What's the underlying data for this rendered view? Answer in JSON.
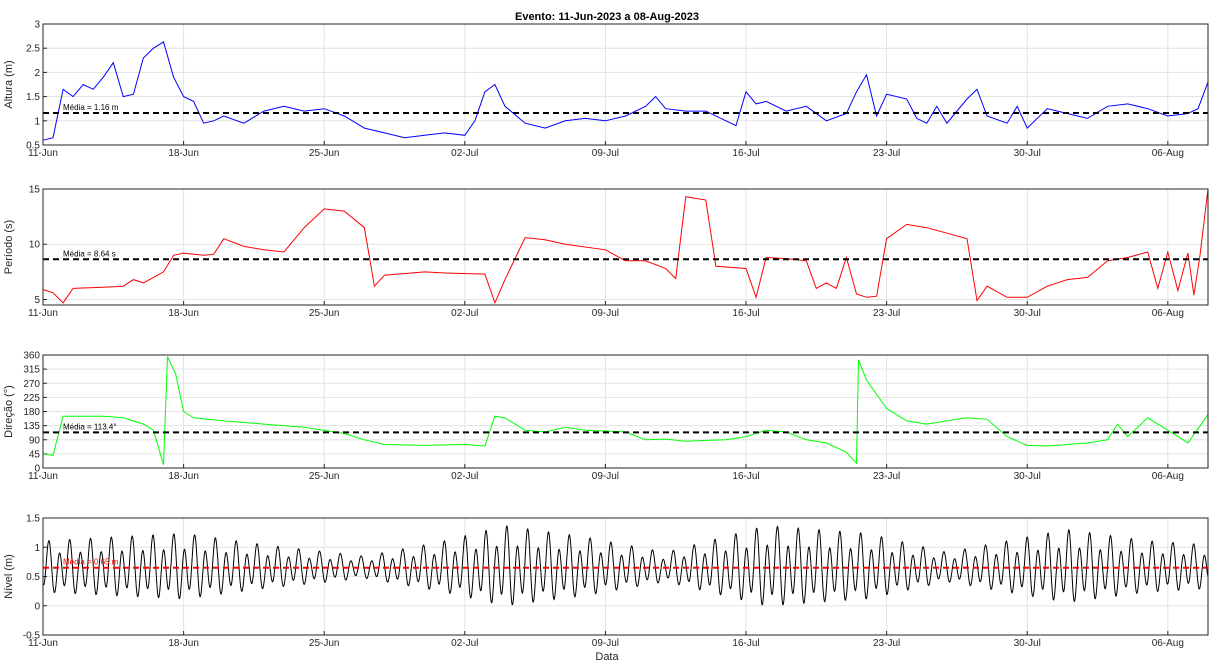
{
  "title": "Evento: 11-Jun-2023 a 08-Aug-2023",
  "xlabel": "Data",
  "chart_data": [
    {
      "type": "line",
      "name": "altura",
      "ylabel": "Altura (m)",
      "xlim": [
        "2023-06-11",
        "2023-08-08"
      ],
      "ylim": [
        0.5,
        3
      ],
      "yticks": [
        0.5,
        1,
        1.5,
        2,
        2.5,
        3
      ],
      "xtick_labels": [
        "11-Jun",
        "18-Jun",
        "25-Jun",
        "02-Jul",
        "09-Jul",
        "16-Jul",
        "23-Jul",
        "30-Jul",
        "06-Aug"
      ],
      "grid": true,
      "color": "#0000ff",
      "mean": {
        "value": 1.16,
        "label": "Média = 1.16 m",
        "color": "#000000"
      },
      "points": [
        [
          "2023-06-11",
          0.6
        ],
        [
          "2023-06-11.5",
          0.65
        ],
        [
          "2023-06-12",
          1.65
        ],
        [
          "2023-06-12.5",
          1.5
        ],
        [
          "2023-06-13",
          1.75
        ],
        [
          "2023-06-13.5",
          1.65
        ],
        [
          "2023-06-14",
          1.9
        ],
        [
          "2023-06-14.5",
          2.2
        ],
        [
          "2023-06-15",
          1.5
        ],
        [
          "2023-06-15.5",
          1.55
        ],
        [
          "2023-06-16",
          2.3
        ],
        [
          "2023-06-16.5",
          2.5
        ],
        [
          "2023-06-17",
          2.63
        ],
        [
          "2023-06-17.5",
          1.9
        ],
        [
          "2023-06-18",
          1.5
        ],
        [
          "2023-06-18.5",
          1.4
        ],
        [
          "2023-06-19",
          0.95
        ],
        [
          "2023-06-19.5",
          1.0
        ],
        [
          "2023-06-20",
          1.1
        ],
        [
          "2023-06-21",
          0.95
        ],
        [
          "2023-06-22",
          1.2
        ],
        [
          "2023-06-23",
          1.3
        ],
        [
          "2023-06-24",
          1.2
        ],
        [
          "2023-06-25",
          1.25
        ],
        [
          "2023-06-26",
          1.1
        ],
        [
          "2023-06-27",
          0.85
        ],
        [
          "2023-06-28",
          0.75
        ],
        [
          "2023-06-29",
          0.65
        ],
        [
          "2023-06-30",
          0.7
        ],
        [
          "2023-07-01",
          0.75
        ],
        [
          "2023-07-02",
          0.7
        ],
        [
          "2023-07-02.5",
          1.0
        ],
        [
          "2023-07-03",
          1.6
        ],
        [
          "2023-07-03.5",
          1.75
        ],
        [
          "2023-07-04",
          1.3
        ],
        [
          "2023-07-05",
          0.95
        ],
        [
          "2023-07-06",
          0.85
        ],
        [
          "2023-07-07",
          1.0
        ],
        [
          "2023-07-08",
          1.05
        ],
        [
          "2023-07-09",
          1.0
        ],
        [
          "2023-07-10",
          1.1
        ],
        [
          "2023-07-11",
          1.3
        ],
        [
          "2023-07-11.5",
          1.5
        ],
        [
          "2023-07-12",
          1.25
        ],
        [
          "2023-07-13",
          1.2
        ],
        [
          "2023-07-14",
          1.2
        ],
        [
          "2023-07-15",
          1.0
        ],
        [
          "2023-07-15.5",
          0.9
        ],
        [
          "2023-07-16",
          1.6
        ],
        [
          "2023-07-16.5",
          1.35
        ],
        [
          "2023-07-17",
          1.4
        ],
        [
          "2023-07-18",
          1.2
        ],
        [
          "2023-07-19",
          1.3
        ],
        [
          "2023-07-20",
          1.0
        ],
        [
          "2023-07-21",
          1.15
        ],
        [
          "2023-07-21.5",
          1.6
        ],
        [
          "2023-07-22",
          1.95
        ],
        [
          "2023-07-22.5",
          1.1
        ],
        [
          "2023-07-23",
          1.55
        ],
        [
          "2023-07-24",
          1.45
        ],
        [
          "2023-07-24.5",
          1.05
        ],
        [
          "2023-07-25",
          0.95
        ],
        [
          "2023-07-25.5",
          1.3
        ],
        [
          "2023-07-26",
          0.95
        ],
        [
          "2023-07-27",
          1.45
        ],
        [
          "2023-07-27.5",
          1.65
        ],
        [
          "2023-07-28",
          1.1
        ],
        [
          "2023-07-29",
          0.95
        ],
        [
          "2023-07-29.5",
          1.3
        ],
        [
          "2023-07-30",
          0.85
        ],
        [
          "2023-07-31",
          1.25
        ],
        [
          "2023-08-01",
          1.15
        ],
        [
          "2023-08-02",
          1.05
        ],
        [
          "2023-08-03",
          1.3
        ],
        [
          "2023-08-04",
          1.35
        ],
        [
          "2023-08-05",
          1.25
        ],
        [
          "2023-08-06",
          1.1
        ],
        [
          "2023-08-07",
          1.15
        ],
        [
          "2023-08-07.5",
          1.25
        ],
        [
          "2023-08-08",
          1.8
        ]
      ]
    },
    {
      "type": "line",
      "name": "periodo",
      "ylabel": "Período (s)",
      "xlim": [
        "2023-06-11",
        "2023-08-08"
      ],
      "ylim": [
        4.5,
        15
      ],
      "yticks": [
        5,
        10,
        15
      ],
      "xtick_labels": [
        "11-Jun",
        "18-Jun",
        "25-Jun",
        "02-Jul",
        "09-Jul",
        "16-Jul",
        "23-Jul",
        "30-Jul",
        "06-Aug"
      ],
      "grid": true,
      "color": "#ff0000",
      "mean": {
        "value": 8.64,
        "label": "Média = 8.64 s",
        "color": "#000000"
      },
      "points": [
        [
          "2023-06-11",
          5.9
        ],
        [
          "2023-06-11.5",
          5.6
        ],
        [
          "2023-06-12",
          4.7
        ],
        [
          "2023-06-12.5",
          6.0
        ],
        [
          "2023-06-14",
          6.1
        ],
        [
          "2023-06-15",
          6.2
        ],
        [
          "2023-06-15.5",
          6.8
        ],
        [
          "2023-06-16",
          6.5
        ],
        [
          "2023-06-17",
          7.5
        ],
        [
          "2023-06-17.5",
          9.0
        ],
        [
          "2023-06-18",
          9.2
        ],
        [
          "2023-06-19",
          9.0
        ],
        [
          "2023-06-19.5",
          9.1
        ],
        [
          "2023-06-20",
          10.5
        ],
        [
          "2023-06-21",
          9.8
        ],
        [
          "2023-06-22",
          9.5
        ],
        [
          "2023-06-23",
          9.3
        ],
        [
          "2023-06-24",
          11.5
        ],
        [
          "2023-06-25",
          13.2
        ],
        [
          "2023-06-26",
          13.0
        ],
        [
          "2023-06-27",
          11.5
        ],
        [
          "2023-06-27.5",
          6.2
        ],
        [
          "2023-06-28",
          7.2
        ],
        [
          "2023-06-30",
          7.5
        ],
        [
          "2023-07-01",
          7.4
        ],
        [
          "2023-07-03",
          7.3
        ],
        [
          "2023-07-03.5",
          4.7
        ],
        [
          "2023-07-04",
          6.8
        ],
        [
          "2023-07-05",
          10.6
        ],
        [
          "2023-07-06",
          10.4
        ],
        [
          "2023-07-07",
          10.0
        ],
        [
          "2023-07-09",
          9.5
        ],
        [
          "2023-07-10",
          8.5
        ],
        [
          "2023-07-11",
          8.5
        ],
        [
          "2023-07-12",
          7.8
        ],
        [
          "2023-07-12.5",
          6.9
        ],
        [
          "2023-07-13",
          14.3
        ],
        [
          "2023-07-14",
          14.0
        ],
        [
          "2023-07-14.5",
          8.0
        ],
        [
          "2023-07-16",
          7.8
        ],
        [
          "2023-07-16.5",
          5.2
        ],
        [
          "2023-07-17",
          8.8
        ],
        [
          "2023-07-18",
          8.7
        ],
        [
          "2023-07-19",
          8.5
        ],
        [
          "2023-07-19.5",
          6.0
        ],
        [
          "2023-07-20",
          6.5
        ],
        [
          "2023-07-20.5",
          6.0
        ],
        [
          "2023-07-21",
          8.8
        ],
        [
          "2023-07-21.5",
          5.5
        ],
        [
          "2023-07-22",
          5.2
        ],
        [
          "2023-07-22.5",
          5.3
        ],
        [
          "2023-07-23",
          10.5
        ],
        [
          "2023-07-24",
          11.8
        ],
        [
          "2023-07-25",
          11.5
        ],
        [
          "2023-07-26",
          11.0
        ],
        [
          "2023-07-27",
          10.5
        ],
        [
          "2023-07-27.5",
          4.9
        ],
        [
          "2023-07-28",
          6.2
        ],
        [
          "2023-07-29",
          5.2
        ],
        [
          "2023-07-30",
          5.2
        ],
        [
          "2023-07-31",
          6.2
        ],
        [
          "2023-08-01",
          6.8
        ],
        [
          "2023-08-02",
          7.0
        ],
        [
          "2023-08-03",
          8.5
        ],
        [
          "2023-08-04",
          8.8
        ],
        [
          "2023-08-05",
          9.3
        ],
        [
          "2023-08-05.5",
          6.0
        ],
        [
          "2023-08-06",
          9.3
        ],
        [
          "2023-08-06.5",
          5.8
        ],
        [
          "2023-08-07",
          9.2
        ],
        [
          "2023-08-07.3",
          5.4
        ],
        [
          "2023-08-07.6",
          9.0
        ],
        [
          "2023-08-08",
          15.0
        ]
      ]
    },
    {
      "type": "line",
      "name": "direcao",
      "ylabel": "Direção (°)",
      "xlim": [
        "2023-06-11",
        "2023-08-08"
      ],
      "ylim": [
        0,
        360
      ],
      "yticks": [
        0,
        45,
        90,
        135,
        180,
        225,
        270,
        315,
        360
      ],
      "xtick_labels": [
        "11-Jun",
        "18-Jun",
        "25-Jun",
        "02-Jul",
        "09-Jul",
        "16-Jul",
        "23-Jul",
        "30-Jul",
        "06-Aug"
      ],
      "grid": true,
      "color": "#00ff00",
      "mean": {
        "value": 113.4,
        "label": "Média = 113.4°",
        "color": "#000000"
      },
      "points": [
        [
          "2023-06-11",
          45
        ],
        [
          "2023-06-11.5",
          40
        ],
        [
          "2023-06-12",
          165
        ],
        [
          "2023-06-13",
          165
        ],
        [
          "2023-06-14",
          165
        ],
        [
          "2023-06-15",
          160
        ],
        [
          "2023-06-16",
          140
        ],
        [
          "2023-06-16.5",
          120
        ],
        [
          "2023-06-17",
          10
        ],
        [
          "2023-06-17.2",
          355
        ],
        [
          "2023-06-17.6",
          300
        ],
        [
          "2023-06-18",
          180
        ],
        [
          "2023-06-18.5",
          160
        ],
        [
          "2023-06-20",
          150
        ],
        [
          "2023-06-22",
          140
        ],
        [
          "2023-06-24",
          130
        ],
        [
          "2023-06-26",
          110
        ],
        [
          "2023-06-27",
          90
        ],
        [
          "2023-06-28",
          75
        ],
        [
          "2023-06-30",
          72
        ],
        [
          "2023-07-02",
          75
        ],
        [
          "2023-07-03",
          70
        ],
        [
          "2023-07-03.5",
          165
        ],
        [
          "2023-07-04",
          160
        ],
        [
          "2023-07-05",
          120
        ],
        [
          "2023-07-06",
          115
        ],
        [
          "2023-07-07",
          130
        ],
        [
          "2023-07-08",
          120
        ],
        [
          "2023-07-10",
          115
        ],
        [
          "2023-07-11",
          90
        ],
        [
          "2023-07-12",
          92
        ],
        [
          "2023-07-13",
          85
        ],
        [
          "2023-07-14",
          88
        ],
        [
          "2023-07-15",
          90
        ],
        [
          "2023-07-16",
          100
        ],
        [
          "2023-07-17",
          120
        ],
        [
          "2023-07-18",
          115
        ],
        [
          "2023-07-19",
          90
        ],
        [
          "2023-07-20",
          80
        ],
        [
          "2023-07-21",
          50
        ],
        [
          "2023-07-21.5",
          15
        ],
        [
          "2023-07-21.6",
          345
        ],
        [
          "2023-07-22",
          280
        ],
        [
          "2023-07-23",
          190
        ],
        [
          "2023-07-24",
          150
        ],
        [
          "2023-07-25",
          140
        ],
        [
          "2023-07-26",
          150
        ],
        [
          "2023-07-27",
          160
        ],
        [
          "2023-07-28",
          155
        ],
        [
          "2023-07-29",
          100
        ],
        [
          "2023-07-30",
          72
        ],
        [
          "2023-07-31",
          70
        ],
        [
          "2023-08-01",
          75
        ],
        [
          "2023-08-02",
          80
        ],
        [
          "2023-08-03",
          90
        ],
        [
          "2023-08-03.5",
          140
        ],
        [
          "2023-08-04",
          100
        ],
        [
          "2023-08-05",
          160
        ],
        [
          "2023-08-06",
          120
        ],
        [
          "2023-08-06.5",
          100
        ],
        [
          "2023-08-07",
          80
        ],
        [
          "2023-08-07.5",
          125
        ],
        [
          "2023-08-08",
          170
        ]
      ]
    },
    {
      "type": "line",
      "name": "nivel",
      "ylabel": "Nível (m)",
      "xlim": [
        "2023-06-11",
        "2023-08-08"
      ],
      "ylim": [
        -0.5,
        1.5
      ],
      "yticks": [
        -0.5,
        0,
        0.5,
        1,
        1.5
      ],
      "xtick_labels": [
        "11-Jun",
        "18-Jun",
        "25-Jun",
        "02-Jul",
        "09-Jul",
        "16-Jul",
        "23-Jul",
        "30-Jul",
        "06-Aug"
      ],
      "grid": true,
      "color": "#000000",
      "mean": {
        "value": 0.65,
        "label": "Média = 0.65 m",
        "color": "#ff0000"
      },
      "tidal": {
        "mean": 0.65,
        "cycles_per_day": 1.93,
        "amplitude_envelope": [
          [
            "2023-06-11",
            0.35
          ],
          [
            "2023-06-18",
            0.45
          ],
          [
            "2023-06-22",
            0.3
          ],
          [
            "2023-06-27",
            0.15
          ],
          [
            "2023-07-01",
            0.35
          ],
          [
            "2023-07-04",
            0.55
          ],
          [
            "2023-07-08",
            0.4
          ],
          [
            "2023-07-12",
            0.2
          ],
          [
            "2023-07-17",
            0.55
          ],
          [
            "2023-07-22",
            0.45
          ],
          [
            "2023-07-26",
            0.2
          ],
          [
            "2023-08-01",
            0.5
          ],
          [
            "2023-08-05",
            0.35
          ],
          [
            "2023-08-08",
            0.3
          ]
        ]
      }
    }
  ]
}
